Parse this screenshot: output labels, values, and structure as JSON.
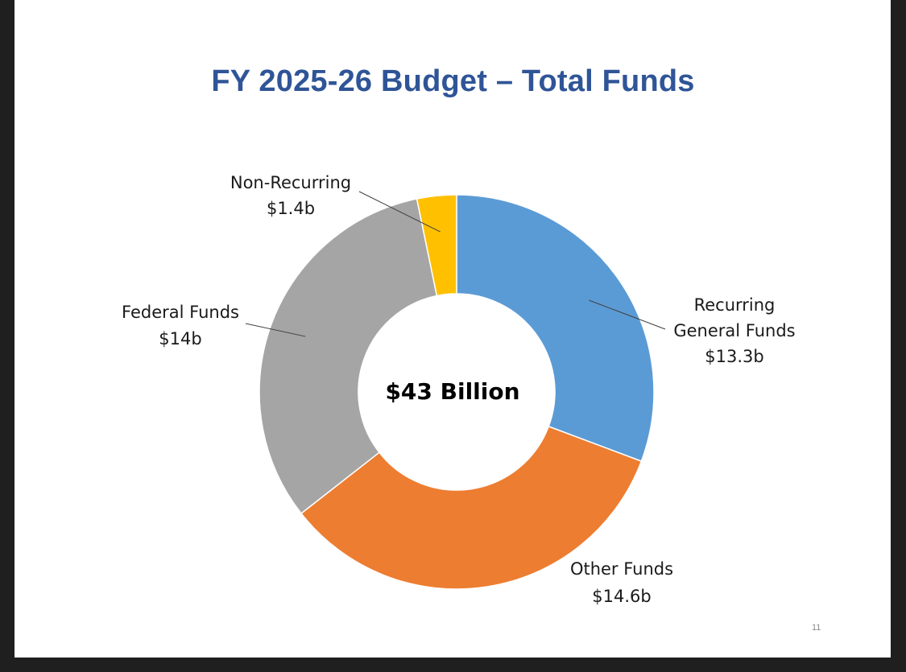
{
  "slide": {
    "title": "FY 2025-26 Budget – Total Funds",
    "page_number": "11"
  },
  "chart_data": {
    "type": "pie",
    "variant": "donut",
    "title": "FY 2025-26 Budget – Total Funds",
    "center_label": "$43 Billion",
    "total_label": "$43 Billion",
    "slices": [
      {
        "label_line1": "Recurring",
        "label_line2": "General Funds",
        "value_label": "$13.3b",
        "value": 13.3,
        "color": "#5b9bd5"
      },
      {
        "label_line1": "Other Funds",
        "value_label": "$14.6b",
        "value": 14.6,
        "color": "#ed7d31"
      },
      {
        "label_line1": "Federal Funds",
        "value_label": "$14b",
        "value": 14.0,
        "color": "#a5a5a5"
      },
      {
        "label_line1": "Non-Recurring",
        "value_label": "$1.4b",
        "value": 1.4,
        "color": "#ffc000"
      }
    ],
    "start_angle": "12 o'clock",
    "direction": "clockwise",
    "legend": "none"
  },
  "colors": {
    "title": "#2f5597",
    "background": "#ffffff",
    "frame": "#1f1f1f"
  }
}
